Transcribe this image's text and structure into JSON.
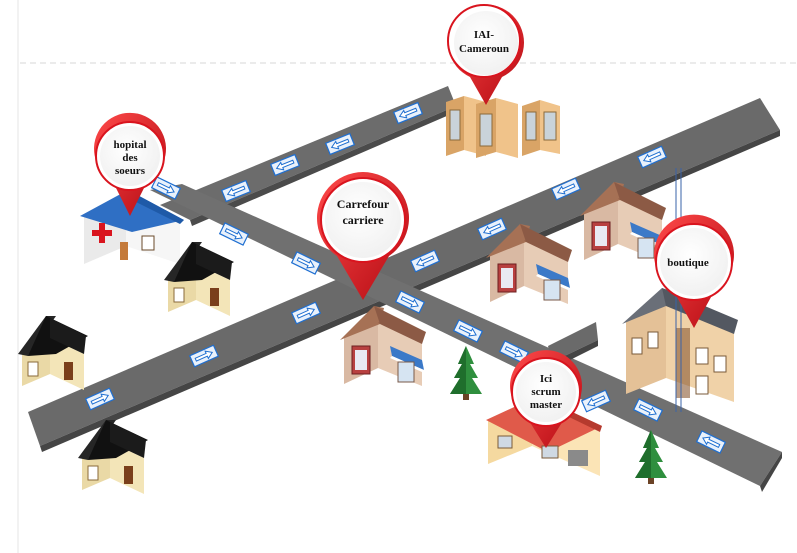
{
  "map": {
    "pins": [
      {
        "id": "iai",
        "lines": [
          "IAI-",
          "Cameroun"
        ]
      },
      {
        "id": "hopital",
        "lines": [
          "hopital",
          "des",
          "soeurs"
        ]
      },
      {
        "id": "carrefour",
        "lines": [
          "Carrefour",
          "carriere"
        ]
      },
      {
        "id": "boutique",
        "lines": [
          "boutique"
        ]
      },
      {
        "id": "scrum",
        "lines": [
          "Ici",
          "scrum",
          "master"
        ]
      }
    ],
    "colors": {
      "road": "#6b6b6b",
      "road_edge": "#4a4a4a",
      "pin_red": "#d9141e",
      "arrow_blue": "#1f6fd1"
    }
  }
}
